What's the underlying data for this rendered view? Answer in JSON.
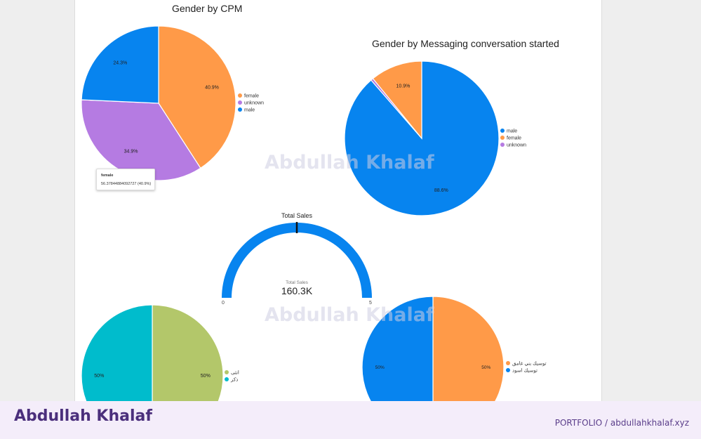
{
  "chart_data": [
    {
      "type": "pie",
      "title": "Gender by CPM",
      "start_angle_deg": 0,
      "slices": [
        {
          "label": "female",
          "value": 40.9,
          "display": "40.9%",
          "color": "#ff9a48"
        },
        {
          "label": "unknown",
          "value": 34.9,
          "display": "34.9%",
          "color": "#b57be2"
        },
        {
          "label": "male",
          "value": 24.3,
          "display": "24.3%",
          "color": "#0784ef"
        }
      ],
      "legend": [
        "female",
        "unknown",
        "male"
      ],
      "legend_position": "right",
      "tooltip": {
        "title": "female",
        "value": "56.37844884092727 (40.9%)"
      }
    },
    {
      "type": "pie",
      "title": "Gender by Messaging conversation started",
      "start_angle_deg": 0,
      "slices": [
        {
          "label": "male",
          "value": 88.6,
          "display": "88.6%",
          "color": "#0784ef"
        },
        {
          "label": "unknown",
          "value": 0.5,
          "display": "",
          "color": "#b57be2"
        },
        {
          "label": "female",
          "value": 10.9,
          "display": "10.9%",
          "color": "#ff9a48"
        }
      ],
      "legend": [
        "male",
        "female",
        "unknown"
      ],
      "legend_colors": [
        "#0784ef",
        "#ff9a48",
        "#b57be2"
      ],
      "legend_position": "right"
    },
    {
      "type": "gauge",
      "title": "Total Sales",
      "label": "Total Sales",
      "value_display": "160.3K",
      "min": 0,
      "max": 5,
      "color": "#0784ef"
    },
    {
      "type": "pie",
      "title": "",
      "start_angle_deg": 0,
      "slices": [
        {
          "label": "انثى",
          "value": 50,
          "display": "50%",
          "color": "#b3c76a"
        },
        {
          "label": "ذكر",
          "value": 50,
          "display": "50%",
          "color": "#00bccc"
        }
      ],
      "legend": [
        "انثى",
        "ذكر"
      ],
      "legend_position": "right"
    },
    {
      "type": "pie",
      "title": "",
      "start_angle_deg": 0,
      "slices": [
        {
          "label": "توسيك بني غامق",
          "value": 50,
          "display": "50%",
          "color": "#ff9a48"
        },
        {
          "label": "توسيك اسود",
          "value": 50,
          "display": "50%",
          "color": "#0784ef"
        }
      ],
      "legend": [
        "توسيك بني غامق",
        "توسيك اسود"
      ],
      "legend_position": "right"
    }
  ],
  "watermark": "Abdullah Khalaf",
  "footer": {
    "brand": "Abdullah Khalaf",
    "link": "PORTFOLIO  /  abdullahkhalaf.xyz"
  }
}
